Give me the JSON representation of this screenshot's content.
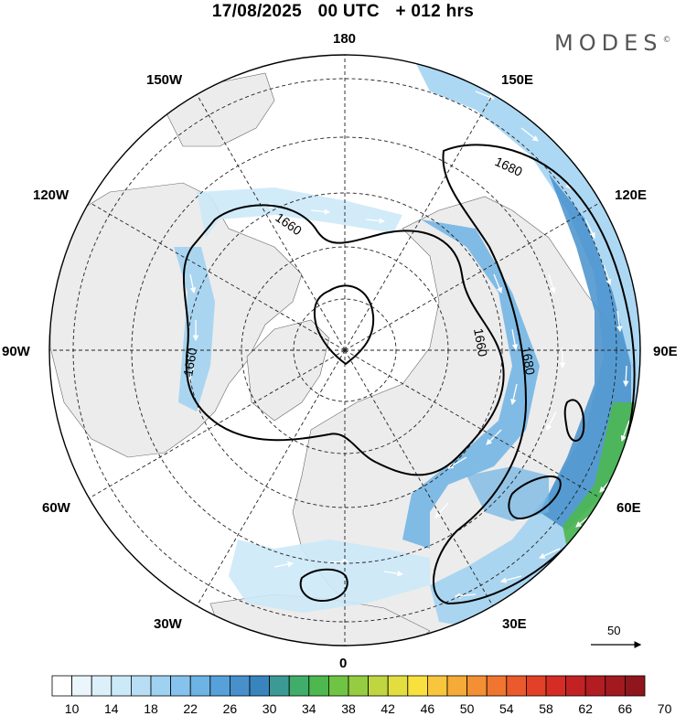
{
  "header": {
    "date": "17/08/2025",
    "run": "00 UTC",
    "lead": "+ 012 hrs"
  },
  "brand": {
    "name": "MODES",
    "mark": "©"
  },
  "map": {
    "projection": "polar-stereographic-north",
    "longitude_labels": {
      "top": "180",
      "top_left": "150W",
      "top_right": "150E",
      "upper_left": "120W",
      "upper_right": "120E",
      "left": "90W",
      "right": "90E",
      "lower_left": "60W",
      "lower_right": "60E",
      "bottom_left": "30W",
      "bottom_right": "30E",
      "bottom": "0"
    },
    "contour_labels": [
      "1660",
      "1680",
      "1660",
      "1660",
      "1680"
    ],
    "land_color": "#eeeeee",
    "ocean_color": "#ffffff"
  },
  "reference_vector": {
    "value": "50"
  },
  "colorbar": {
    "colors": [
      "#ffffff",
      "#eaf6fc",
      "#dbf0fa",
      "#cce9f8",
      "#b7def5",
      "#9fd1f1",
      "#86c2ec",
      "#6db3e4",
      "#56a1d9",
      "#4790cc",
      "#3a84be",
      "#3c9a94",
      "#40ad6a",
      "#4cb84f",
      "#70c443",
      "#96cc42",
      "#bfd641",
      "#e3de3f",
      "#f8e03e",
      "#f8c63c",
      "#f6aa38",
      "#f38f34",
      "#ef7530",
      "#ea5a2c",
      "#e24028",
      "#d52c26",
      "#c32224",
      "#b21d22",
      "#a21a20",
      "#8f161d"
    ],
    "tick_labels": [
      "10",
      "14",
      "18",
      "22",
      "26",
      "30",
      "34",
      "38",
      "42",
      "46",
      "50",
      "54",
      "58",
      "62",
      "66",
      "70"
    ]
  }
}
